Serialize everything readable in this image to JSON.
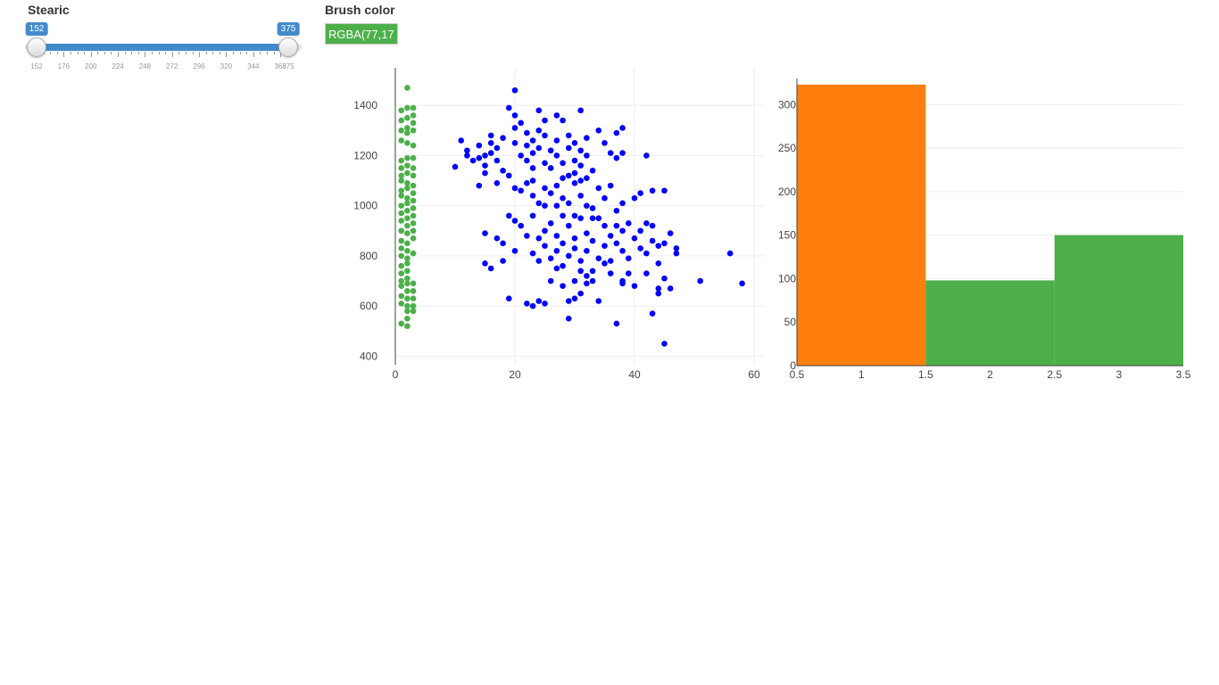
{
  "slider": {
    "label": "Stearic",
    "min": 152,
    "max": 375,
    "from": 152,
    "to": 375,
    "ticks": [
      "152",
      "176",
      "200",
      "224",
      "248",
      "272",
      "296",
      "320",
      "344",
      "368",
      "375"
    ],
    "accent_color": "#428bca"
  },
  "brush": {
    "label": "Brush color",
    "value": "RGBA(77,175,74,1)",
    "swatch_color": "#4daf4a"
  },
  "colors": {
    "selected": "#0000ff",
    "brushed": "#4daf4a",
    "histogram_unselected": "#ff7f0e",
    "histogram_selected": "#4daf4a"
  },
  "chart_data": [
    {
      "type": "scatter",
      "xlim": [
        0,
        60
      ],
      "ylim": [
        380,
        1500
      ],
      "x_ticks": [
        0,
        20,
        40,
        60
      ],
      "y_ticks": [
        400,
        600,
        800,
        1000,
        1200,
        1400
      ],
      "grid": true,
      "series": [
        {
          "color": "#4daf4a",
          "points": [
            [
              1,
              1380
            ],
            [
              1,
              1340
            ],
            [
              1,
              1300
            ],
            [
              1,
              1260
            ],
            [
              1,
              1180
            ],
            [
              1,
              1150
            ],
            [
              1,
              1120
            ],
            [
              1,
              1100
            ],
            [
              1,
              1060
            ],
            [
              1,
              1040
            ],
            [
              1,
              1000
            ],
            [
              1,
              970
            ],
            [
              1,
              940
            ],
            [
              1,
              900
            ],
            [
              1,
              860
            ],
            [
              1,
              830
            ],
            [
              1,
              800
            ],
            [
              1,
              760
            ],
            [
              1,
              730
            ],
            [
              1,
              700
            ],
            [
              1,
              680
            ],
            [
              1,
              640
            ],
            [
              1,
              610
            ],
            [
              1,
              530
            ],
            [
              2,
              1470
            ],
            [
              2,
              1390
            ],
            [
              2,
              1350
            ],
            [
              2,
              1310
            ],
            [
              2,
              1290
            ],
            [
              2,
              1250
            ],
            [
              2,
              1190
            ],
            [
              2,
              1160
            ],
            [
              2,
              1130
            ],
            [
              2,
              1090
            ],
            [
              2,
              1070
            ],
            [
              2,
              1030
            ],
            [
              2,
              1010
            ],
            [
              2,
              980
            ],
            [
              2,
              950
            ],
            [
              2,
              920
            ],
            [
              2,
              890
            ],
            [
              2,
              850
            ],
            [
              2,
              820
            ],
            [
              2,
              790
            ],
            [
              2,
              770
            ],
            [
              2,
              740
            ],
            [
              2,
              710
            ],
            [
              2,
              690
            ],
            [
              2,
              660
            ],
            [
              2,
              630
            ],
            [
              2,
              600
            ],
            [
              2,
              580
            ],
            [
              2,
              550
            ],
            [
              2,
              520
            ],
            [
              3,
              1390
            ],
            [
              3,
              1360
            ],
            [
              3,
              1330
            ],
            [
              3,
              1300
            ],
            [
              3,
              1240
            ],
            [
              3,
              1190
            ],
            [
              3,
              1150
            ],
            [
              3,
              1120
            ],
            [
              3,
              1080
            ],
            [
              3,
              1050
            ],
            [
              3,
              1020
            ],
            [
              3,
              990
            ],
            [
              3,
              960
            ],
            [
              3,
              930
            ],
            [
              3,
              900
            ],
            [
              3,
              870
            ],
            [
              3,
              810
            ],
            [
              3,
              690
            ],
            [
              3,
              660
            ],
            [
              3,
              630
            ],
            [
              3,
              600
            ],
            [
              3,
              580
            ]
          ]
        },
        {
          "color": "#0000ff",
          "points": [
            [
              10,
              1155
            ],
            [
              11,
              1260
            ],
            [
              12,
              1200
            ],
            [
              12,
              1220
            ],
            [
              13,
              1180
            ],
            [
              14,
              1190
            ],
            [
              14,
              1240
            ],
            [
              15,
              1160
            ],
            [
              15,
              1200
            ],
            [
              16,
              1250
            ],
            [
              16,
              1280
            ],
            [
              16,
              1210
            ],
            [
              17,
              1180
            ],
            [
              17,
              1230
            ],
            [
              18,
              1270
            ],
            [
              18,
              1140
            ],
            [
              19,
              1390
            ],
            [
              20,
              1460
            ],
            [
              20,
              1360
            ],
            [
              20,
              1310
            ],
            [
              20,
              1250
            ],
            [
              21,
              1330
            ],
            [
              21,
              1200
            ],
            [
              22,
              1180
            ],
            [
              22,
              1240
            ],
            [
              22,
              1290
            ],
            [
              23,
              1150
            ],
            [
              23,
              1210
            ],
            [
              23,
              1260
            ],
            [
              24,
              1380
            ],
            [
              24,
              1300
            ],
            [
              24,
              1230
            ],
            [
              25,
              1170
            ],
            [
              25,
              1340
            ],
            [
              25,
              1280
            ],
            [
              26,
              1220
            ],
            [
              26,
              1150
            ],
            [
              27,
              1360
            ],
            [
              27,
              1260
            ],
            [
              27,
              1200
            ],
            [
              28,
              1340
            ],
            [
              28,
              1170
            ],
            [
              28,
              1110
            ],
            [
              29,
              1280
            ],
            [
              29,
              1230
            ],
            [
              30,
              1250
            ],
            [
              30,
              1180
            ],
            [
              30,
              1130
            ],
            [
              31,
              1380
            ],
            [
              31,
              1220
            ],
            [
              31,
              1160
            ],
            [
              32,
              1270
            ],
            [
              32,
              1200
            ],
            [
              33,
              1140
            ],
            [
              34,
              1300
            ],
            [
              35,
              1250
            ],
            [
              36,
              1210
            ],
            [
              37,
              1190
            ],
            [
              37,
              1290
            ],
            [
              38,
              1310
            ],
            [
              38,
              1210
            ],
            [
              42,
              1200
            ],
            [
              14,
              1080
            ],
            [
              15,
              1130
            ],
            [
              17,
              1090
            ],
            [
              19,
              1120
            ],
            [
              20,
              1070
            ],
            [
              21,
              1060
            ],
            [
              22,
              1090
            ],
            [
              23,
              1100
            ],
            [
              23,
              1040
            ],
            [
              24,
              1010
            ],
            [
              25,
              1070
            ],
            [
              25,
              1000
            ],
            [
              26,
              1050
            ],
            [
              27,
              1080
            ],
            [
              27,
              1000
            ],
            [
              28,
              1030
            ],
            [
              29,
              1120
            ],
            [
              29,
              1010
            ],
            [
              30,
              1090
            ],
            [
              30,
              960
            ],
            [
              31,
              1100
            ],
            [
              31,
              1040
            ],
            [
              32,
              1110
            ],
            [
              32,
              1000
            ],
            [
              33,
              990
            ],
            [
              34,
              1070
            ],
            [
              34,
              950
            ],
            [
              35,
              1030
            ],
            [
              36,
              1080
            ],
            [
              37,
              980
            ],
            [
              38,
              1010
            ],
            [
              39,
              930
            ],
            [
              40,
              1030
            ],
            [
              41,
              1050
            ],
            [
              43,
              1060
            ],
            [
              45,
              1060
            ],
            [
              15,
              890
            ],
            [
              17,
              870
            ],
            [
              18,
              850
            ],
            [
              19,
              960
            ],
            [
              20,
              940
            ],
            [
              20,
              820
            ],
            [
              21,
              920
            ],
            [
              22,
              880
            ],
            [
              23,
              960
            ],
            [
              23,
              810
            ],
            [
              24,
              870
            ],
            [
              24,
              780
            ],
            [
              25,
              900
            ],
            [
              25,
              840
            ],
            [
              26,
              930
            ],
            [
              26,
              790
            ],
            [
              27,
              880
            ],
            [
              27,
              820
            ],
            [
              28,
              960
            ],
            [
              28,
              850
            ],
            [
              28,
              760
            ],
            [
              29,
              920
            ],
            [
              29,
              800
            ],
            [
              30,
              870
            ],
            [
              30,
              830
            ],
            [
              31,
              950
            ],
            [
              31,
              780
            ],
            [
              32,
              890
            ],
            [
              32,
              820
            ],
            [
              33,
              950
            ],
            [
              33,
              860
            ],
            [
              34,
              790
            ],
            [
              35,
              920
            ],
            [
              35,
              840
            ],
            [
              36,
              880
            ],
            [
              36,
              780
            ],
            [
              37,
              920
            ],
            [
              37,
              850
            ],
            [
              38,
              900
            ],
            [
              38,
              820
            ],
            [
              39,
              790
            ],
            [
              40,
              870
            ],
            [
              41,
              900
            ],
            [
              41,
              830
            ],
            [
              42,
              930
            ],
            [
              42,
              810
            ],
            [
              43,
              920
            ],
            [
              43,
              860
            ],
            [
              44,
              770
            ],
            [
              44,
              840
            ],
            [
              45,
              850
            ],
            [
              46,
              890
            ],
            [
              47,
              830
            ],
            [
              47,
              810
            ],
            [
              15,
              770
            ],
            [
              16,
              750
            ],
            [
              18,
              780
            ],
            [
              19,
              630
            ],
            [
              22,
              610
            ],
            [
              23,
              600
            ],
            [
              24,
              620
            ],
            [
              25,
              610
            ],
            [
              26,
              700
            ],
            [
              27,
              750
            ],
            [
              28,
              680
            ],
            [
              29,
              550
            ],
            [
              29,
              620
            ],
            [
              30,
              630
            ],
            [
              30,
              700
            ],
            [
              31,
              650
            ],
            [
              31,
              740
            ],
            [
              32,
              720
            ],
            [
              32,
              690
            ],
            [
              33,
              700
            ],
            [
              33,
              740
            ],
            [
              34,
              620
            ],
            [
              35,
              770
            ],
            [
              36,
              730
            ],
            [
              37,
              530
            ],
            [
              38,
              700
            ],
            [
              38,
              690
            ],
            [
              39,
              730
            ],
            [
              40,
              680
            ],
            [
              42,
              730
            ],
            [
              43,
              570
            ],
            [
              44,
              670
            ],
            [
              44,
              650
            ],
            [
              45,
              710
            ],
            [
              45,
              450
            ],
            [
              46,
              670
            ],
            [
              51,
              700
            ],
            [
              56,
              810
            ],
            [
              58,
              690
            ]
          ]
        }
      ]
    },
    {
      "type": "bar",
      "xlim": [
        0.5,
        3.5
      ],
      "ylim": [
        0,
        330
      ],
      "x_ticks": [
        "0.5",
        "1",
        "1.5",
        "2",
        "2.5",
        "3",
        "3.5"
      ],
      "y_ticks": [
        0,
        50,
        100,
        150,
        200,
        250,
        300
      ],
      "grid": true,
      "bars": [
        {
          "x0": 0.5,
          "x1": 1.5,
          "value": 323,
          "color": "#ff7f0e"
        },
        {
          "x0": 1.5,
          "x1": 2.5,
          "value": 98,
          "color": "#4daf4a"
        },
        {
          "x0": 2.5,
          "x1": 3.5,
          "value": 150,
          "color": "#4daf4a"
        }
      ]
    }
  ]
}
